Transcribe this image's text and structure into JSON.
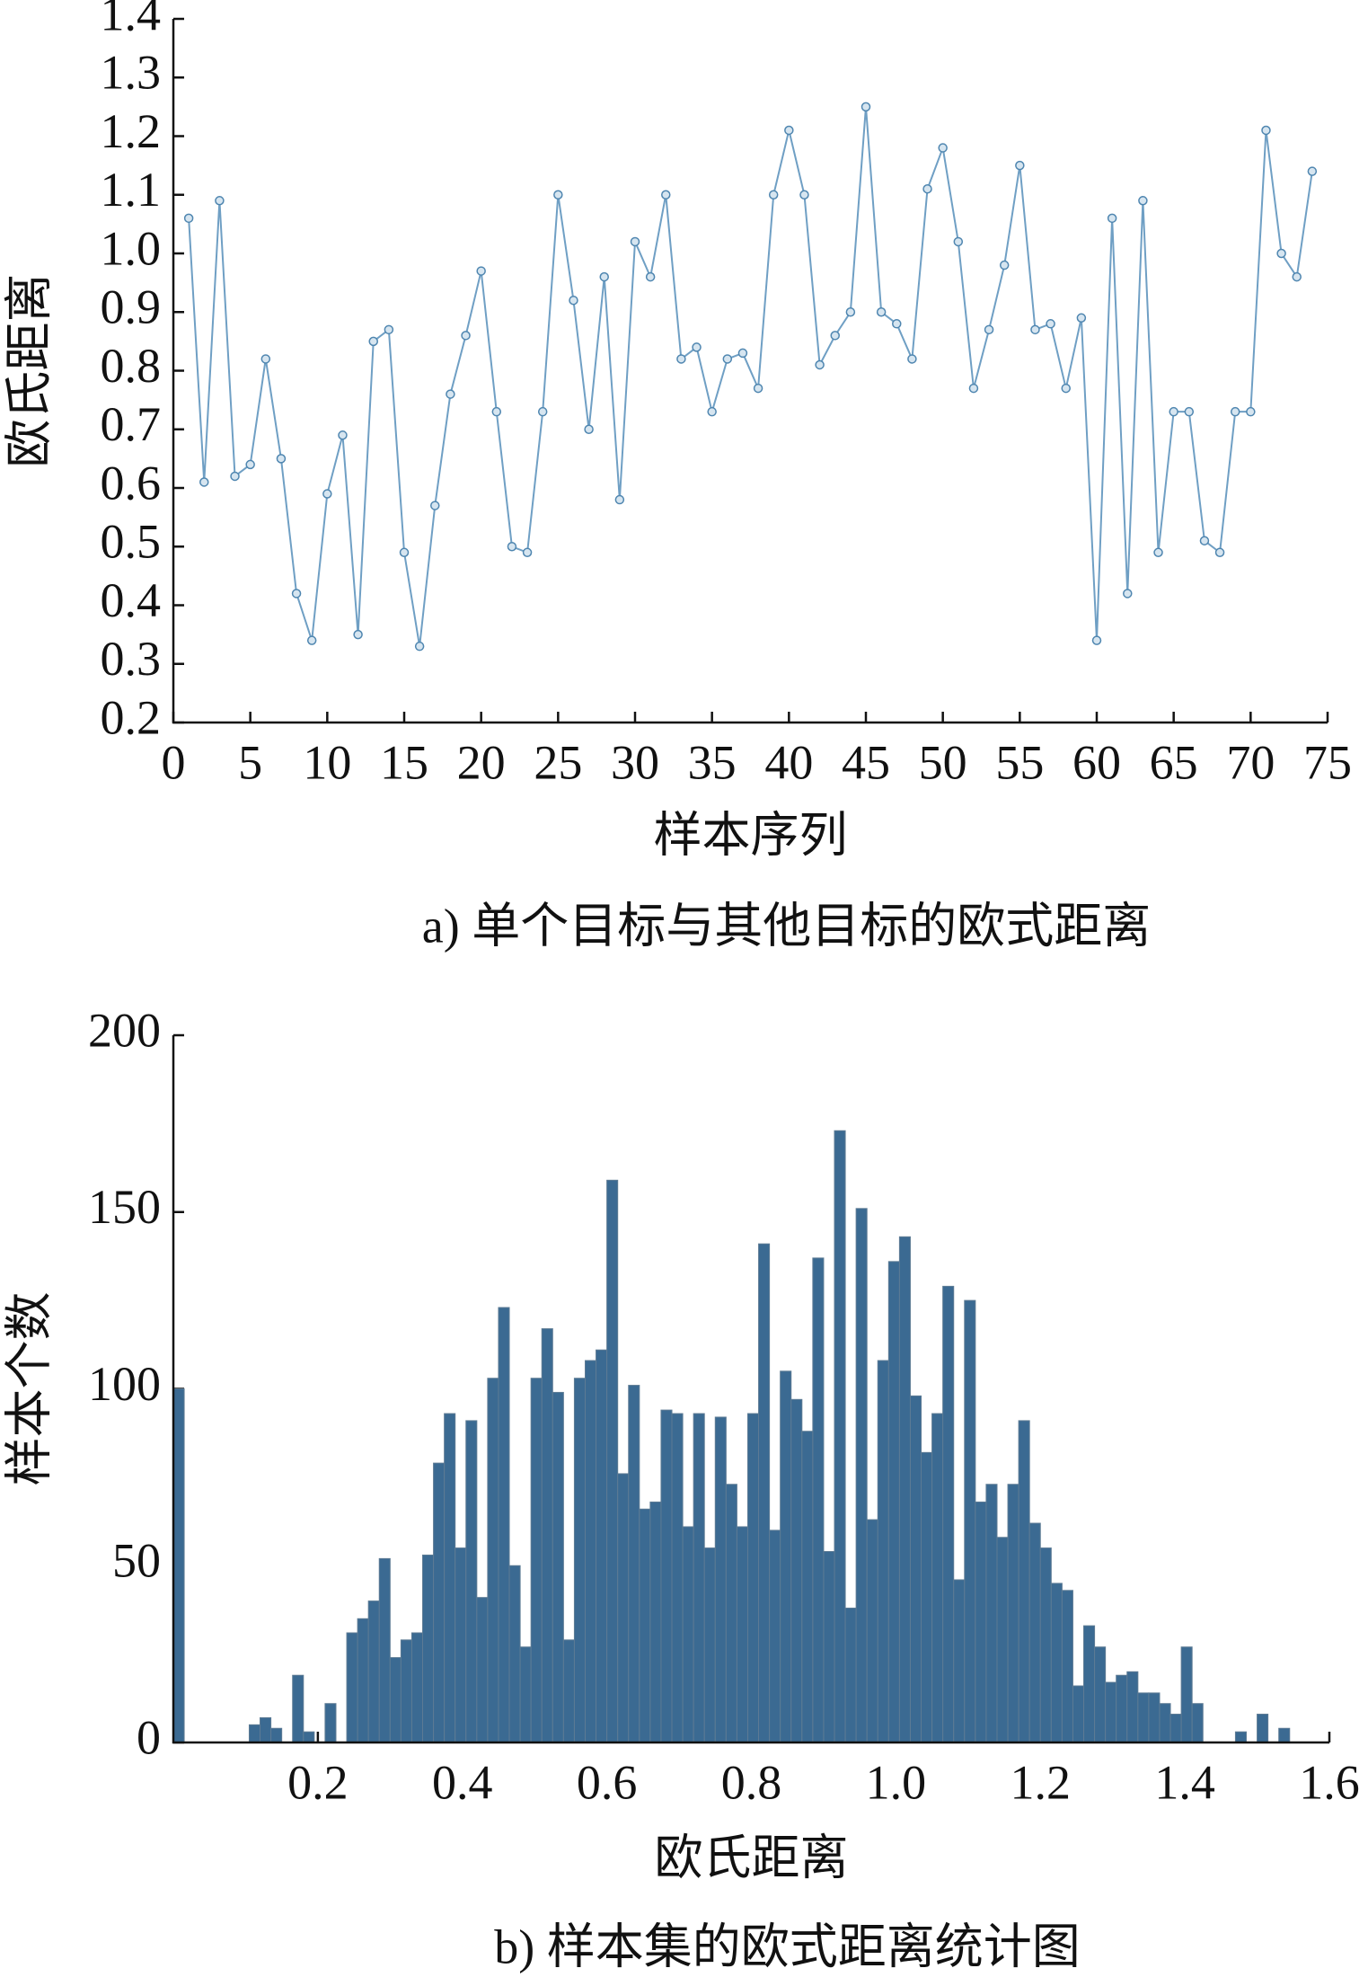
{
  "chart_data": [
    {
      "type": "line",
      "title": "a) 单个目标与其他目标的欧式距离",
      "xlabel": "样本序列",
      "ylabel": "欧氏距离",
      "color": "#6f9fc4",
      "x": [
        1,
        2,
        3,
        4,
        5,
        6,
        7,
        8,
        9,
        10,
        11,
        12,
        13,
        14,
        15,
        16,
        17,
        18,
        19,
        20,
        21,
        22,
        23,
        24,
        25,
        26,
        27,
        28,
        29,
        30,
        31,
        32,
        33,
        34,
        35,
        36,
        37,
        38,
        39,
        40,
        41,
        42,
        43,
        44,
        45,
        46,
        47,
        48,
        49,
        50,
        51,
        52,
        53,
        54,
        55,
        56,
        57,
        58,
        59,
        60,
        61,
        62,
        63,
        64,
        65,
        66,
        67,
        68,
        69,
        70,
        71,
        72,
        73,
        74
      ],
      "values": [
        1.06,
        0.61,
        1.09,
        0.62,
        0.64,
        0.82,
        0.65,
        0.42,
        0.34,
        0.59,
        0.69,
        0.35,
        0.85,
        0.87,
        0.49,
        0.33,
        0.57,
        0.76,
        0.86,
        0.97,
        0.73,
        0.5,
        0.49,
        0.73,
        1.1,
        0.92,
        0.7,
        0.96,
        0.58,
        1.02,
        0.96,
        1.1,
        0.82,
        0.84,
        0.73,
        0.82,
        0.83,
        0.77,
        1.1,
        1.21,
        1.1,
        0.81,
        0.86,
        0.9,
        1.25,
        0.9,
        0.88,
        0.82,
        1.11,
        1.18,
        1.02,
        0.77,
        0.87,
        0.98,
        1.15,
        0.87,
        0.88,
        0.77,
        0.89,
        0.34,
        1.06,
        0.42,
        1.09,
        0.49,
        0.73,
        0.73,
        0.51,
        0.49,
        0.73,
        0.73,
        1.21,
        1.0,
        0.96,
        1.14
      ],
      "xlim": [
        0,
        75
      ],
      "xticks": [
        0,
        5,
        10,
        15,
        20,
        25,
        30,
        35,
        40,
        45,
        50,
        55,
        60,
        65,
        70,
        75
      ],
      "ylim": [
        0.2,
        1.4
      ],
      "yticks": [
        0.2,
        0.3,
        0.4,
        0.5,
        0.6,
        0.7,
        0.8,
        0.9,
        {
          "value": 1,
          "label": "1.0"
        },
        1.1,
        1.2,
        1.3,
        1.4
      ]
    },
    {
      "type": "histogram",
      "title": "b) 样本集的欧式距离统计图",
      "xlabel": "欧氏距离",
      "ylabel": "样本个数",
      "color": "#3b6a92",
      "bins": [
        0,
        0.015,
        0.03,
        0.045,
        0.06,
        0.075,
        0.09,
        0.105,
        0.12,
        0.135,
        0.15,
        0.165,
        0.18,
        0.195,
        0.21,
        0.225,
        0.24,
        0.255,
        0.27,
        0.285,
        0.3,
        0.315,
        0.33,
        0.345,
        0.36,
        0.375,
        0.39,
        0.405,
        0.42,
        0.435,
        0.45,
        0.465,
        0.48,
        0.495,
        0.51,
        0.525,
        0.54,
        0.555,
        0.57,
        0.585,
        0.6,
        0.615,
        0.63,
        0.645,
        0.66,
        0.675,
        0.69,
        0.705,
        0.72,
        0.735,
        0.75,
        0.765,
        0.78,
        0.795,
        0.81,
        0.825,
        0.84,
        0.855,
        0.87,
        0.885,
        0.9,
        0.915,
        0.93,
        0.945,
        0.96,
        0.975,
        0.99,
        1.005,
        1.02,
        1.035,
        1.05,
        1.065,
        1.08,
        1.095,
        1.11,
        1.125,
        1.14,
        1.155,
        1.17,
        1.185,
        1.2,
        1.215,
        1.23,
        1.245,
        1.26,
        1.275,
        1.29,
        1.305,
        1.32,
        1.335,
        1.35,
        1.365,
        1.38,
        1.395,
        1.41,
        1.425,
        1.44,
        1.455,
        1.47,
        1.485,
        1.5,
        1.515,
        1.53,
        1.545
      ],
      "values": [
        100,
        0,
        0,
        0,
        0,
        0,
        0,
        5,
        7,
        4,
        0,
        19,
        3,
        0,
        11,
        0,
        31,
        35,
        40,
        52,
        24,
        29,
        31,
        53,
        79,
        93,
        55,
        91,
        41,
        103,
        123,
        50,
        27,
        103,
        117,
        99,
        29,
        103,
        108,
        111,
        159,
        76,
        101,
        66,
        68,
        94,
        93,
        61,
        93,
        55,
        92,
        73,
        61,
        93,
        141,
        60,
        105,
        97,
        88,
        137,
        54,
        173,
        38,
        151,
        63,
        108,
        136,
        143,
        98,
        82,
        93,
        129,
        46,
        125,
        68,
        73,
        58,
        73,
        91,
        62,
        55,
        45,
        43,
        16,
        33,
        27,
        17,
        19,
        20,
        14,
        14,
        11,
        8,
        27,
        11,
        0,
        0,
        0,
        3,
        0,
        8,
        0,
        4
      ],
      "xlim": [
        0,
        1.6
      ],
      "xticks": [
        0.2,
        0.4,
        0.6,
        0.8,
        {
          "value": 1,
          "label": "1.0"
        },
        1.2,
        1.4,
        1.6
      ],
      "ylim": [
        0,
        200
      ],
      "yticks": [
        0,
        50,
        100,
        150,
        200
      ]
    }
  ]
}
